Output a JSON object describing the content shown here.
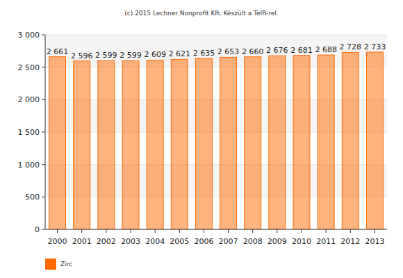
{
  "chart_data": {
    "type": "bar",
    "title": "(c) 2015 Lechner Nonprofit Kft. Készült a TeIR-rel.",
    "categories": [
      "2000",
      "2001",
      "2002",
      "2003",
      "2004",
      "2005",
      "2006",
      "2007",
      "2008",
      "2009",
      "2010",
      "2011",
      "2012",
      "2013"
    ],
    "series": [
      {
        "name": "Zirc",
        "color": "#ff6a00",
        "values": [
          2661,
          2596,
          2599,
          2599,
          2609,
          2621,
          2635,
          2653,
          2660,
          2676,
          2681,
          2688,
          2728,
          2733
        ],
        "value_labels": [
          "2 661",
          "2 596",
          "2 599",
          "2 599",
          "2 609",
          "2 621",
          "2 635",
          "2 653",
          "2 660",
          "2 676",
          "2 681",
          "2 688",
          "2 728",
          "2 733"
        ]
      }
    ],
    "ylim": [
      0,
      3000
    ],
    "yticks": [
      {
        "value": 0,
        "label": "0"
      },
      {
        "value": 500,
        "label": "500"
      },
      {
        "value": 1000,
        "label": "1 000"
      },
      {
        "value": 1500,
        "label": "1 500"
      },
      {
        "value": 2000,
        "label": "2 000"
      },
      {
        "value": 2500,
        "label": "2 500"
      },
      {
        "value": 3000,
        "label": "3 000"
      }
    ],
    "grid": true,
    "data_labels": true,
    "legend": "bottom-left"
  }
}
